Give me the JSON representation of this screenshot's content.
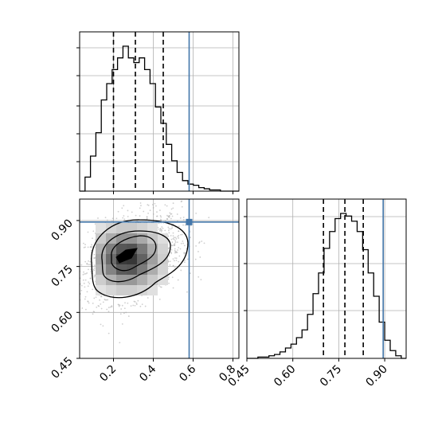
{
  "chart_data": {
    "type": "corner",
    "parameters": [
      "",
      ""
    ],
    "truth": {
      "x": 0.58,
      "y": 0.895,
      "color": "#4477aa"
    },
    "quantiles": {
      "x": [
        0.2,
        0.31,
        0.45
      ],
      "y": [
        0.7,
        0.77,
        0.83
      ]
    },
    "axes": {
      "x": {
        "range": [
          0.03,
          0.83
        ],
        "ticks": [
          0.2,
          0.4,
          0.6,
          0.8
        ],
        "tick_labels": [
          "0.2",
          "0.4",
          "0.6",
          "0.8"
        ]
      },
      "y": {
        "range": [
          0.45,
          0.97
        ],
        "ticks": [
          0.45,
          0.6,
          0.75,
          0.9
        ],
        "tick_labels": [
          "0.45",
          "0.60",
          "0.75",
          "0.90"
        ]
      }
    },
    "grid": true,
    "histogram_x": {
      "bin_edges": [
        0.03,
        0.0572,
        0.0844,
        0.1116,
        0.1388,
        0.166,
        0.1932,
        0.2204,
        0.2476,
        0.2748,
        0.302,
        0.3292,
        0.3564,
        0.3836,
        0.4108,
        0.438,
        0.4652,
        0.4924,
        0.5196,
        0.5468,
        0.574,
        0.6012,
        0.6284,
        0.6556,
        0.6828,
        0.71,
        0.7372,
        0.7644,
        0.7916,
        0.83
      ],
      "counts": [
        0,
        12,
        30,
        50,
        78,
        92,
        104,
        114,
        124,
        114,
        110,
        114,
        104,
        92,
        72,
        58,
        40,
        26,
        16,
        9,
        6,
        5,
        3,
        2,
        1,
        1,
        0,
        0,
        0
      ]
    },
    "histogram_y": {
      "bin_edges": [
        0.45,
        0.468,
        0.486,
        0.504,
        0.522,
        0.54,
        0.558,
        0.576,
        0.594,
        0.612,
        0.63,
        0.648,
        0.666,
        0.684,
        0.702,
        0.72,
        0.738,
        0.756,
        0.774,
        0.792,
        0.81,
        0.828,
        0.846,
        0.864,
        0.882,
        0.9,
        0.918,
        0.936,
        0.954,
        0.97
      ],
      "counts": [
        0,
        0,
        1,
        1,
        2,
        3,
        5,
        8,
        11,
        16,
        22,
        34,
        50,
        66,
        85,
        98,
        108,
        112,
        110,
        106,
        98,
        84,
        66,
        48,
        28,
        14,
        6,
        2,
        0
      ]
    },
    "density_2d": {
      "mean": [
        0.3,
        0.78
      ],
      "std": [
        0.12,
        0.07
      ],
      "contour_levels": [
        0.12,
        0.35,
        0.65,
        0.88
      ]
    }
  }
}
